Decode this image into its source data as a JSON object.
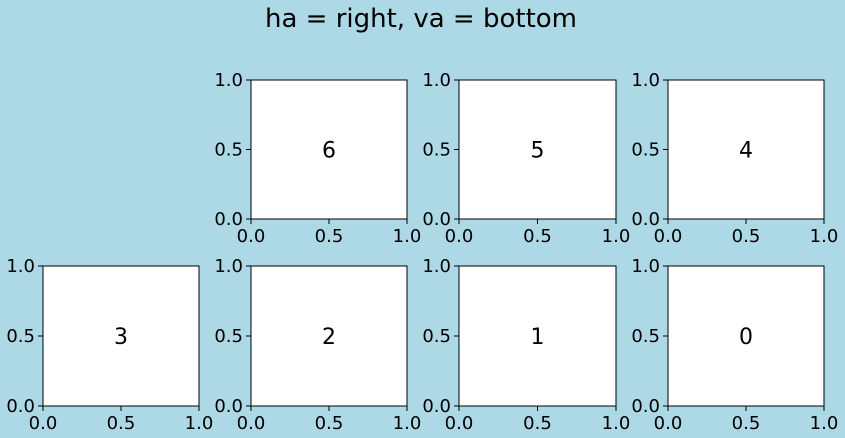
{
  "figure": {
    "suptitle": "ha = right, va = bottom",
    "background_color": "#add8e6",
    "axes_facecolor": "#ffffff",
    "spine_color": "#000000"
  },
  "chart_data": [
    {
      "type": "scatter",
      "label": "6",
      "xlim": [
        0.0,
        1.0
      ],
      "ylim": [
        0.0,
        1.0
      ],
      "xticks": [
        "0.0",
        "0.5",
        "1.0"
      ],
      "yticks": [
        "0.0",
        "0.5",
        "1.0"
      ],
      "grid": false
    },
    {
      "type": "scatter",
      "label": "5",
      "xlim": [
        0.0,
        1.0
      ],
      "ylim": [
        0.0,
        1.0
      ],
      "xticks": [
        "0.0",
        "0.5",
        "1.0"
      ],
      "yticks": [
        "0.0",
        "0.5",
        "1.0"
      ],
      "grid": false
    },
    {
      "type": "scatter",
      "label": "4",
      "xlim": [
        0.0,
        1.0
      ],
      "ylim": [
        0.0,
        1.0
      ],
      "xticks": [
        "0.0",
        "0.5",
        "1.0"
      ],
      "yticks": [
        "0.0",
        "0.5",
        "1.0"
      ],
      "grid": false
    },
    {
      "type": "scatter",
      "label": "3",
      "xlim": [
        0.0,
        1.0
      ],
      "ylim": [
        0.0,
        1.0
      ],
      "xticks": [
        "0.0",
        "0.5",
        "1.0"
      ],
      "yticks": [
        "0.0",
        "0.5",
        "1.0"
      ],
      "grid": false
    },
    {
      "type": "scatter",
      "label": "2",
      "xlim": [
        0.0,
        1.0
      ],
      "ylim": [
        0.0,
        1.0
      ],
      "xticks": [
        "0.0",
        "0.5",
        "1.0"
      ],
      "yticks": [
        "0.0",
        "0.5",
        "1.0"
      ],
      "grid": false
    },
    {
      "type": "scatter",
      "label": "1",
      "xlim": [
        0.0,
        1.0
      ],
      "ylim": [
        0.0,
        1.0
      ],
      "xticks": [
        "0.0",
        "0.5",
        "1.0"
      ],
      "yticks": [
        "0.0",
        "0.5",
        "1.0"
      ],
      "grid": false
    },
    {
      "type": "scatter",
      "label": "0",
      "xlim": [
        0.0,
        1.0
      ],
      "ylim": [
        0.0,
        1.0
      ],
      "xticks": [
        "0.0",
        "0.5",
        "1.0"
      ],
      "yticks": [
        "0.0",
        "0.5",
        "1.0"
      ],
      "grid": false
    }
  ]
}
